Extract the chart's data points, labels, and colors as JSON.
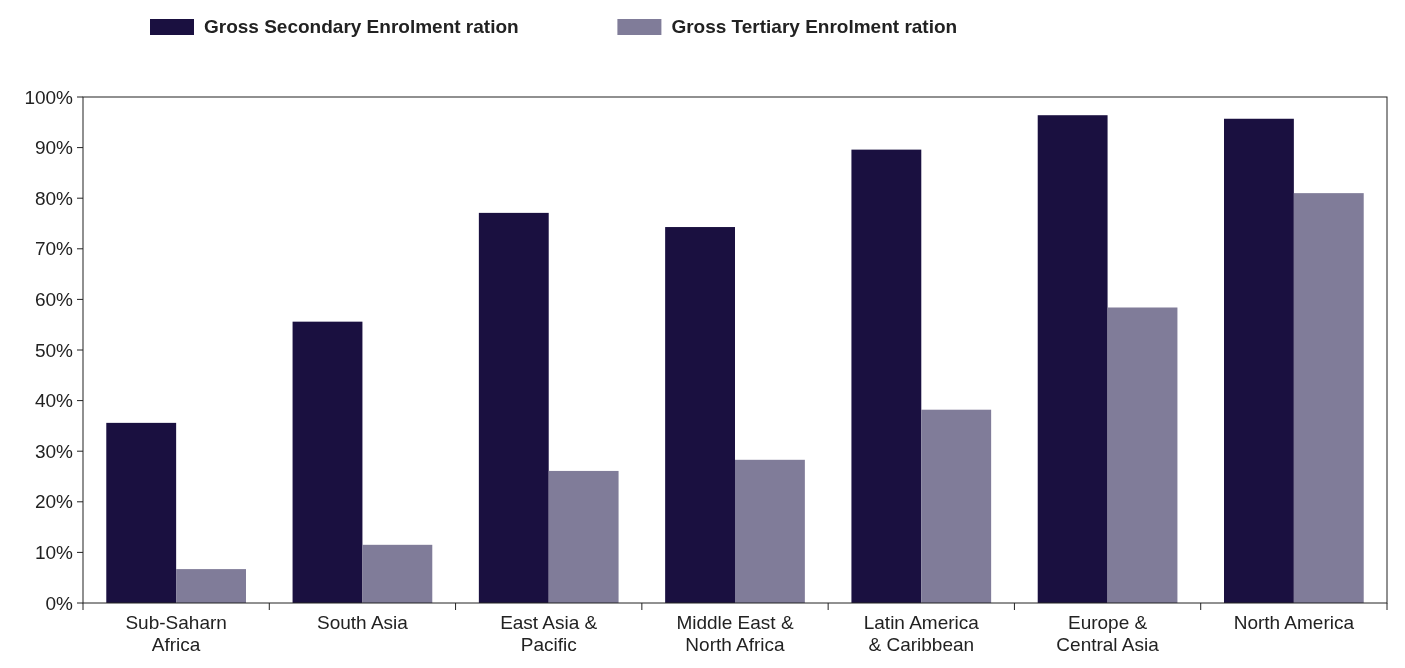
{
  "chart_data": {
    "type": "bar",
    "categories": [
      "Sub-Saharn Africa",
      "South Asia",
      "East Asia & Pacific",
      "Middle East & North Africa",
      "Latin America & Caribbean",
      "Europe & Central Asia",
      "North America"
    ],
    "series": [
      {
        "name": "Gross Secondary Enrolment ration",
        "color": "#1a1040",
        "values": [
          35.6,
          55.6,
          77.1,
          74.3,
          89.6,
          96.4,
          95.7
        ]
      },
      {
        "name": "Gross Tertiary Enrolment ration",
        "color": "#807c99",
        "values": [
          6.7,
          11.5,
          26.1,
          28.3,
          38.2,
          58.4,
          81.0
        ]
      }
    ],
    "ylim": [
      0,
      100
    ],
    "yticks": [
      {
        "value": 0,
        "label": "0%"
      },
      {
        "value": 10,
        "label": "10%"
      },
      {
        "value": 20,
        "label": "20%"
      },
      {
        "value": 30,
        "label": "30%"
      },
      {
        "value": 40,
        "label": "40%"
      },
      {
        "value": 50,
        "label": "50%"
      },
      {
        "value": 60,
        "label": "60%"
      },
      {
        "value": 70,
        "label": "70%"
      },
      {
        "value": 80,
        "label": "80%"
      },
      {
        "value": 90,
        "label": "90%"
      },
      {
        "value": 100,
        "label": "100%"
      }
    ],
    "grid": false,
    "legend": "top left"
  }
}
